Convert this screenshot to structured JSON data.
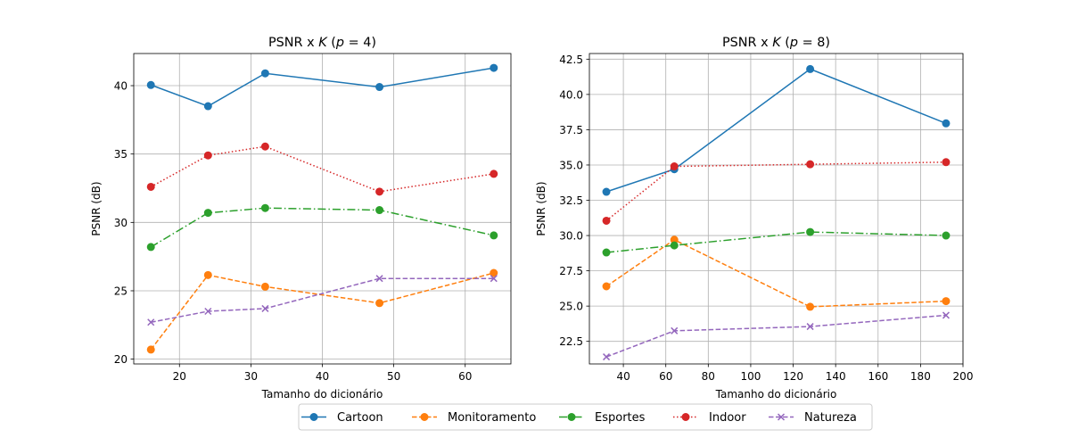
{
  "chart_data": [
    {
      "type": "line",
      "title": "PSNR x K (p = 4)",
      "xlabel": "Tamanho do dicionário",
      "ylabel": "PSNR (dB)",
      "xlim": [
        13.6,
        66.4
      ],
      "ylim": [
        19.65,
        42.35
      ],
      "xticks": [
        20,
        30,
        40,
        50,
        60
      ],
      "yticks": [
        20,
        25,
        30,
        35,
        40
      ],
      "grid": true,
      "x": [
        16,
        24,
        32,
        48,
        64
      ],
      "series": [
        {
          "name": "Cartoon",
          "values": [
            40.05,
            38.5,
            40.9,
            39.9,
            41.3
          ]
        },
        {
          "name": "Monitoramento",
          "values": [
            20.7,
            26.15,
            25.3,
            24.1,
            26.3
          ]
        },
        {
          "name": "Esportes",
          "values": [
            28.2,
            30.7,
            31.05,
            30.9,
            29.05
          ]
        },
        {
          "name": "Indoor",
          "values": [
            32.6,
            34.9,
            35.55,
            32.25,
            33.55
          ]
        },
        {
          "name": "Natureza",
          "values": [
            22.7,
            23.5,
            23.7,
            25.9,
            25.9
          ]
        }
      ]
    },
    {
      "type": "line",
      "title": "PSNR x K (p = 8)",
      "xlabel": "Tamanho do dicionário",
      "ylabel": "PSNR (dB)",
      "xlim": [
        24,
        200
      ],
      "ylim": [
        20.9,
        42.9
      ],
      "xticks": [
        40,
        60,
        80,
        100,
        120,
        140,
        160,
        180,
        200
      ],
      "yticks": [
        22.5,
        25.0,
        27.5,
        30.0,
        32.5,
        35.0,
        37.5,
        40.0,
        42.5
      ],
      "grid": true,
      "x": [
        32,
        64,
        128,
        192
      ],
      "series": [
        {
          "name": "Cartoon",
          "values": [
            33.1,
            34.7,
            41.8,
            37.95
          ]
        },
        {
          "name": "Monitoramento",
          "values": [
            26.4,
            29.7,
            24.95,
            25.35
          ]
        },
        {
          "name": "Esportes",
          "values": [
            28.8,
            29.3,
            30.25,
            30.0
          ]
        },
        {
          "name": "Indoor",
          "values": [
            31.05,
            34.9,
            35.05,
            35.2
          ]
        },
        {
          "name": "Natureza",
          "values": [
            21.4,
            23.25,
            23.55,
            24.35
          ]
        }
      ]
    }
  ],
  "legend": {
    "placement": "bottom-center",
    "entries": [
      "Cartoon",
      "Monitoramento",
      "Esportes",
      "Indoor",
      "Natureza"
    ]
  },
  "series_styles": {
    "Cartoon": {
      "color": "#1f77b4",
      "dash": "solid",
      "marker": "circle"
    },
    "Monitoramento": {
      "color": "#ff7f0e",
      "dash": "dashed",
      "marker": "circle"
    },
    "Esportes": {
      "color": "#2ca02c",
      "dash": "dashdot",
      "marker": "circle"
    },
    "Indoor": {
      "color": "#d62728",
      "dash": "dotted",
      "marker": "circle"
    },
    "Natureza": {
      "color": "#9467bd",
      "dash": "dashed",
      "marker": "x"
    }
  }
}
